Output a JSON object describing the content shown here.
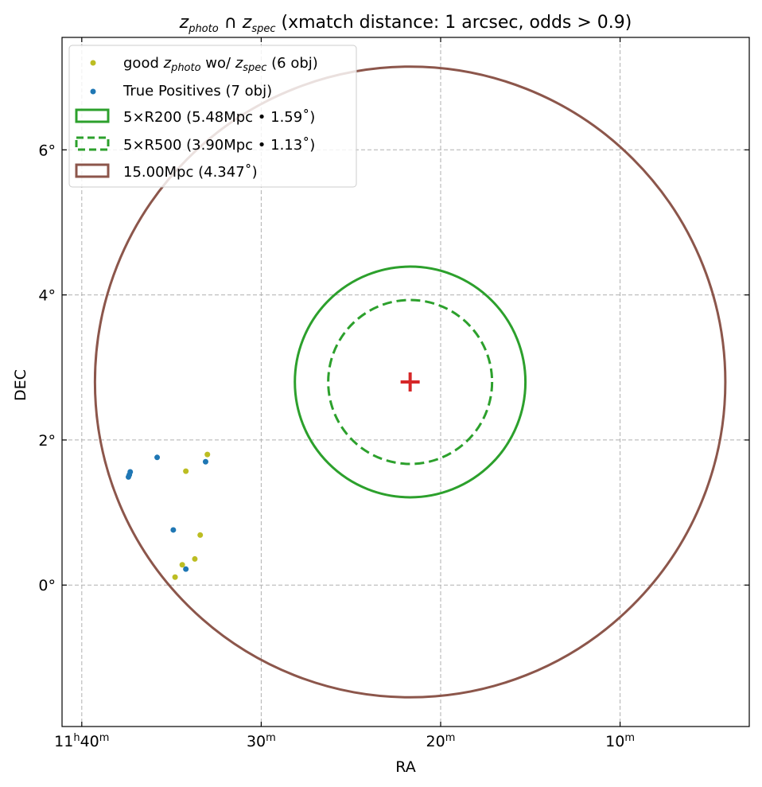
{
  "chart_data": {
    "type": "scatter",
    "title": {
      "prefix": "z",
      "prefix_sub": "photo",
      "op": " ∩ ",
      "mid": "z",
      "mid_sub": "spec",
      "rest": " (xmatch distance: 1 arcsec, odds > 0.9)"
    },
    "xlabel": "RA",
    "ylabel": "DEC",
    "xlim_min": [
      11,
      41.1
    ],
    "xlim_max": [
      11,
      2.8
    ],
    "ylim_deg": [
      -1.95,
      7.55
    ],
    "grid": true,
    "legend_position": "upper-left",
    "x_ticks": [
      {
        "value_min": 40,
        "prefix": "11",
        "prefix_sup": "h",
        "main": "40",
        "sup": "m"
      },
      {
        "value_min": 30,
        "prefix": "",
        "prefix_sup": "",
        "main": "30",
        "sup": "m"
      },
      {
        "value_min": 20,
        "prefix": "",
        "prefix_sup": "",
        "main": "20",
        "sup": "m"
      },
      {
        "value_min": 10,
        "prefix": "",
        "prefix_sup": "",
        "main": "10",
        "sup": "m"
      }
    ],
    "y_ticks": [
      {
        "value": 0,
        "label": "0°"
      },
      {
        "value": 2,
        "label": "2°"
      },
      {
        "value": 4,
        "label": "4°"
      },
      {
        "value": 6,
        "label": "6°"
      }
    ],
    "center": {
      "ra_min": 21.7,
      "dec": 2.8,
      "color": "#d62728"
    },
    "circles": [
      {
        "name": "5×R200 (5.48Mpc • 1.59˚)",
        "radius_deg": 1.59,
        "color": "#2ca02c",
        "dashed": false
      },
      {
        "name": "5×R500 (3.90Mpc • 1.13˚)",
        "radius_deg": 1.13,
        "color": "#2ca02c",
        "dashed": true
      },
      {
        "name": "15.00Mpc (4.347˚)",
        "radius_deg": 4.347,
        "color": "#8c564b",
        "dashed": false
      }
    ],
    "series": [
      {
        "legend": {
          "a": "good ",
          "b": "z",
          "b_sub": "photo",
          "c": " wo/ ",
          "d": "z",
          "d_sub": "spec",
          "e": " (6 obj)"
        },
        "color": "#bcbd22",
        "points": [
          {
            "ra_min": 33.0,
            "dec": 1.8
          },
          {
            "ra_min": 34.2,
            "dec": 1.57
          },
          {
            "ra_min": 33.4,
            "dec": 0.69
          },
          {
            "ra_min": 33.7,
            "dec": 0.36
          },
          {
            "ra_min": 34.4,
            "dec": 0.28
          },
          {
            "ra_min": 34.8,
            "dec": 0.11
          }
        ]
      },
      {
        "legend": {
          "a": "True Positives (7 obj)"
        },
        "color": "#1f77b4",
        "points": [
          {
            "ra_min": 37.3,
            "dec": 1.56
          },
          {
            "ra_min": 37.4,
            "dec": 1.49
          },
          {
            "ra_min": 35.8,
            "dec": 1.76
          },
          {
            "ra_min": 33.1,
            "dec": 1.7
          },
          {
            "ra_min": 34.9,
            "dec": 0.76
          },
          {
            "ra_min": 37.35,
            "dec": 1.52
          },
          {
            "ra_min": 34.2,
            "dec": 0.22
          }
        ]
      }
    ]
  }
}
